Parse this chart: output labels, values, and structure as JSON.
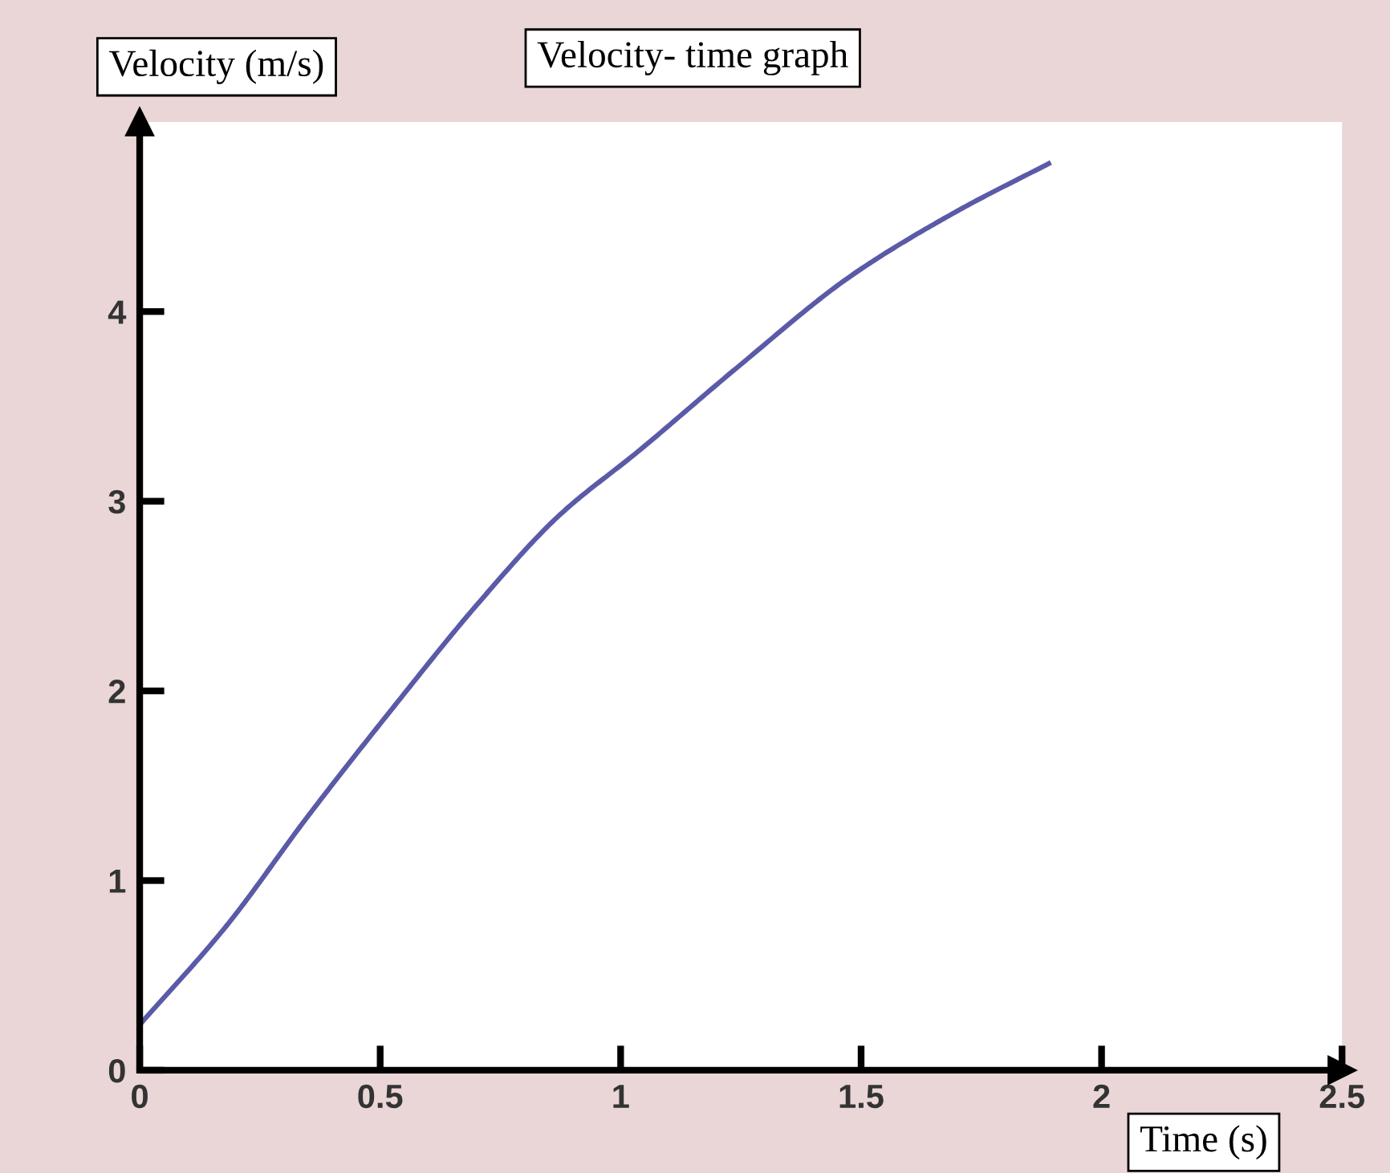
{
  "chart_data": {
    "type": "line",
    "title": "Velocity- time graph",
    "xlabel": "Time (s)",
    "ylabel": "Velocity (m/s)",
    "x": [
      0,
      0.18,
      0.35,
      0.52,
      0.71,
      0.87,
      1.04,
      1.24,
      1.48,
      1.7,
      1.89
    ],
    "series": [
      {
        "color": "#5a5aa8",
        "values": [
          0.24,
          0.76,
          1.34,
          1.89,
          2.48,
          2.92,
          3.27,
          3.7,
          4.19,
          4.53,
          4.78
        ]
      }
    ],
    "xlim": [
      0,
      2.5
    ],
    "ylim": [
      0,
      5
    ],
    "xticks": [
      0,
      0.5,
      1,
      1.5,
      2,
      2.5
    ],
    "yticks": [
      0,
      1,
      2,
      3,
      4
    ],
    "grid": false,
    "legend": false,
    "marker": "none",
    "line_style": "solid"
  }
}
